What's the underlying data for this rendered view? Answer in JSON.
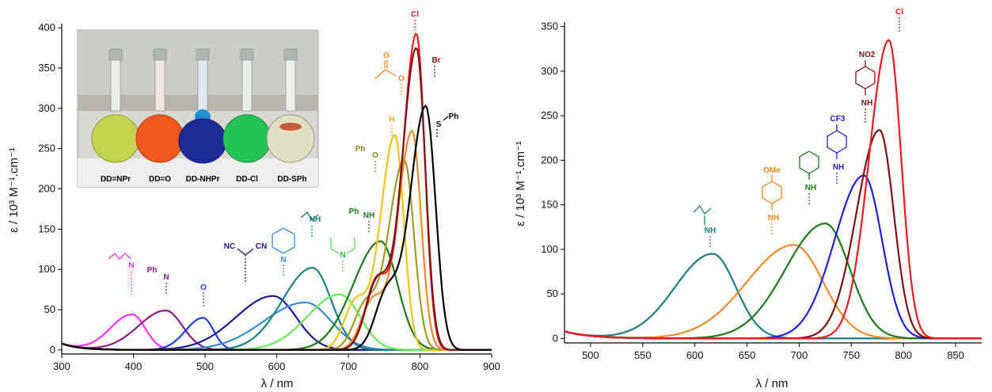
{
  "chart_data": [
    {
      "type": "line",
      "xlabel": "λ / nm",
      "ylabel": "ε / 10³ M⁻¹.cm⁻¹",
      "xlim": [
        300,
        900
      ],
      "ylim": [
        -5,
        405
      ],
      "x_ticks": [
        "300",
        "400",
        "500",
        "600",
        "700",
        "800",
        "900"
      ],
      "y_ticks": [
        "0",
        "50",
        "100",
        "150",
        "200",
        "250",
        "300",
        "350",
        "400"
      ],
      "series": [
        {
          "color": "#ff33ff",
          "peak_x": 398,
          "peak_y": 44,
          "width": 30
        },
        {
          "color": "#8b1a8b",
          "peak_x": 445,
          "peak_y": 49,
          "width": 38
        },
        {
          "color": "#1f3fd8",
          "peak_x": 497,
          "peak_y": 40,
          "width": 24
        },
        {
          "color": "#1a1a8c",
          "peak_x": 595,
          "peak_y": 67,
          "width": 52
        },
        {
          "color": "#3a8ad6",
          "peak_x": 640,
          "peak_y": 59,
          "width": 58
        },
        {
          "color": "#1c7f82",
          "peak_x": 650,
          "peak_y": 102,
          "width": 42
        },
        {
          "color": "#66ee55",
          "peak_x": 688,
          "peak_y": 69,
          "width": 45
        },
        {
          "color": "#1a7a1a",
          "peak_x": 745,
          "peak_y": 135,
          "width": 38
        },
        {
          "color": "#f0c419",
          "peak_x": 765,
          "peak_y": 267,
          "width": 20
        },
        {
          "color": "#9c9c2a",
          "peak_x": 778,
          "peak_y": 236,
          "width": 22
        },
        {
          "color": "#ee8a2a",
          "peak_x": 789,
          "peak_y": 272,
          "width": 20
        },
        {
          "color": "#e81c1c",
          "peak_x": 795,
          "peak_y": 393,
          "width": 19
        },
        {
          "color": "#7a1414",
          "peak_x": 795,
          "peak_y": 375,
          "width": 20
        },
        {
          "color": "#000000",
          "peak_x": 808,
          "peak_y": 303,
          "width": 22
        }
      ],
      "annotations": [
        "N",
        "Ph",
        "N",
        "O",
        "NC",
        "CN",
        "N",
        "NH",
        "N",
        "Ph",
        "NH",
        "Ph",
        "O",
        "H",
        "O",
        "O",
        "Cl",
        "Br",
        "S",
        "Ph"
      ],
      "inset_labels": [
        "DD=NPr",
        "DD=O",
        "DD-NHPr",
        "DD-Cl",
        "DD-SPh"
      ]
    },
    {
      "type": "line",
      "xlabel": "λ / nm",
      "ylabel": "ε / 10³ M⁻¹.cm⁻¹",
      "xlim": [
        475,
        875
      ],
      "ylim": [
        -5,
        355
      ],
      "x_ticks": [
        "500",
        "550",
        "600",
        "650",
        "700",
        "750",
        "800",
        "850"
      ],
      "y_ticks": [
        "0",
        "50",
        "100",
        "150",
        "200",
        "250",
        "300",
        "350"
      ],
      "series": [
        {
          "color": "#1c7f82",
          "peak_x": 617,
          "peak_y": 95,
          "width": 36
        },
        {
          "color": "#ee8a2a",
          "peak_x": 695,
          "peak_y": 105,
          "width": 45
        },
        {
          "color": "#1a7a1a",
          "peak_x": 725,
          "peak_y": 129,
          "width": 38
        },
        {
          "color": "#2020d8",
          "peak_x": 762,
          "peak_y": 183,
          "width": 28
        },
        {
          "color": "#7a1414",
          "peak_x": 777,
          "peak_y": 234,
          "width": 22
        },
        {
          "color": "#e81c1c",
          "peak_x": 786,
          "peak_y": 335,
          "width": 19
        }
      ],
      "annotations": [
        "NH",
        "OMe",
        "NH",
        "NH",
        "CF3",
        "NH",
        "NO2",
        "NH",
        "Cl"
      ]
    }
  ]
}
